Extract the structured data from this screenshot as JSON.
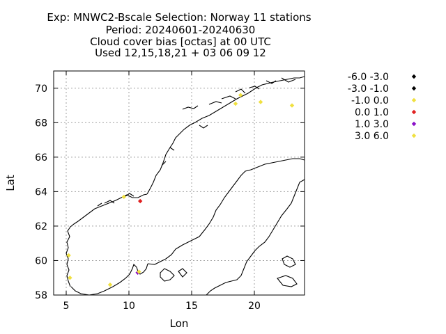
{
  "chart_data": {
    "type": "scatter",
    "title_lines": [
      "Exp: MNWC2-Bscale   Selection: Norway     11 stations",
      "Period: 20240601-20240630",
      "Cloud cover bias [octas] at  00 UTC",
      "Used 12,15,18,21 + 03 06 09 12"
    ],
    "xlabel": "Lon",
    "ylabel": "Lat",
    "xlim": [
      4,
      24
    ],
    "ylim": [
      58,
      71
    ],
    "xticks": [
      5,
      10,
      15,
      20
    ],
    "yticks": [
      58,
      60,
      62,
      64,
      66,
      68,
      70
    ],
    "grid": true,
    "legend_position": "right",
    "legend": [
      {
        "label": "-6.0 -3.0",
        "color": "#000000"
      },
      {
        "label": "-3.0 -1.0",
        "color": "#000000"
      },
      {
        "label": "-1.0 0.0",
        "color": "#f0e040"
      },
      {
        "label": "0.0 1.0",
        "color": "#e02020"
      },
      {
        "label": "1.0 3.0",
        "color": "#8a10c8"
      },
      {
        "label": "3.0 6.0",
        "color": "#f0e040"
      }
    ],
    "points": [
      {
        "lon": 18.9,
        "lat": 69.6,
        "class": 2
      },
      {
        "lon": 18.5,
        "lat": 69.1,
        "class": 2
      },
      {
        "lon": 20.5,
        "lat": 69.2,
        "class": 2
      },
      {
        "lon": 23.0,
        "lat": 69.0,
        "class": 2
      },
      {
        "lon": 9.6,
        "lat": 63.7,
        "class": 2
      },
      {
        "lon": 10.9,
        "lat": 63.45,
        "class": 3
      },
      {
        "lon": 5.2,
        "lat": 60.3,
        "class": 2
      },
      {
        "lon": 5.3,
        "lat": 59.0,
        "class": 2
      },
      {
        "lon": 8.5,
        "lat": 58.6,
        "class": 2
      },
      {
        "lon": 10.7,
        "lat": 59.3,
        "class": 4
      },
      {
        "lon": 10.8,
        "lat": 59.35,
        "class": 5
      }
    ]
  }
}
